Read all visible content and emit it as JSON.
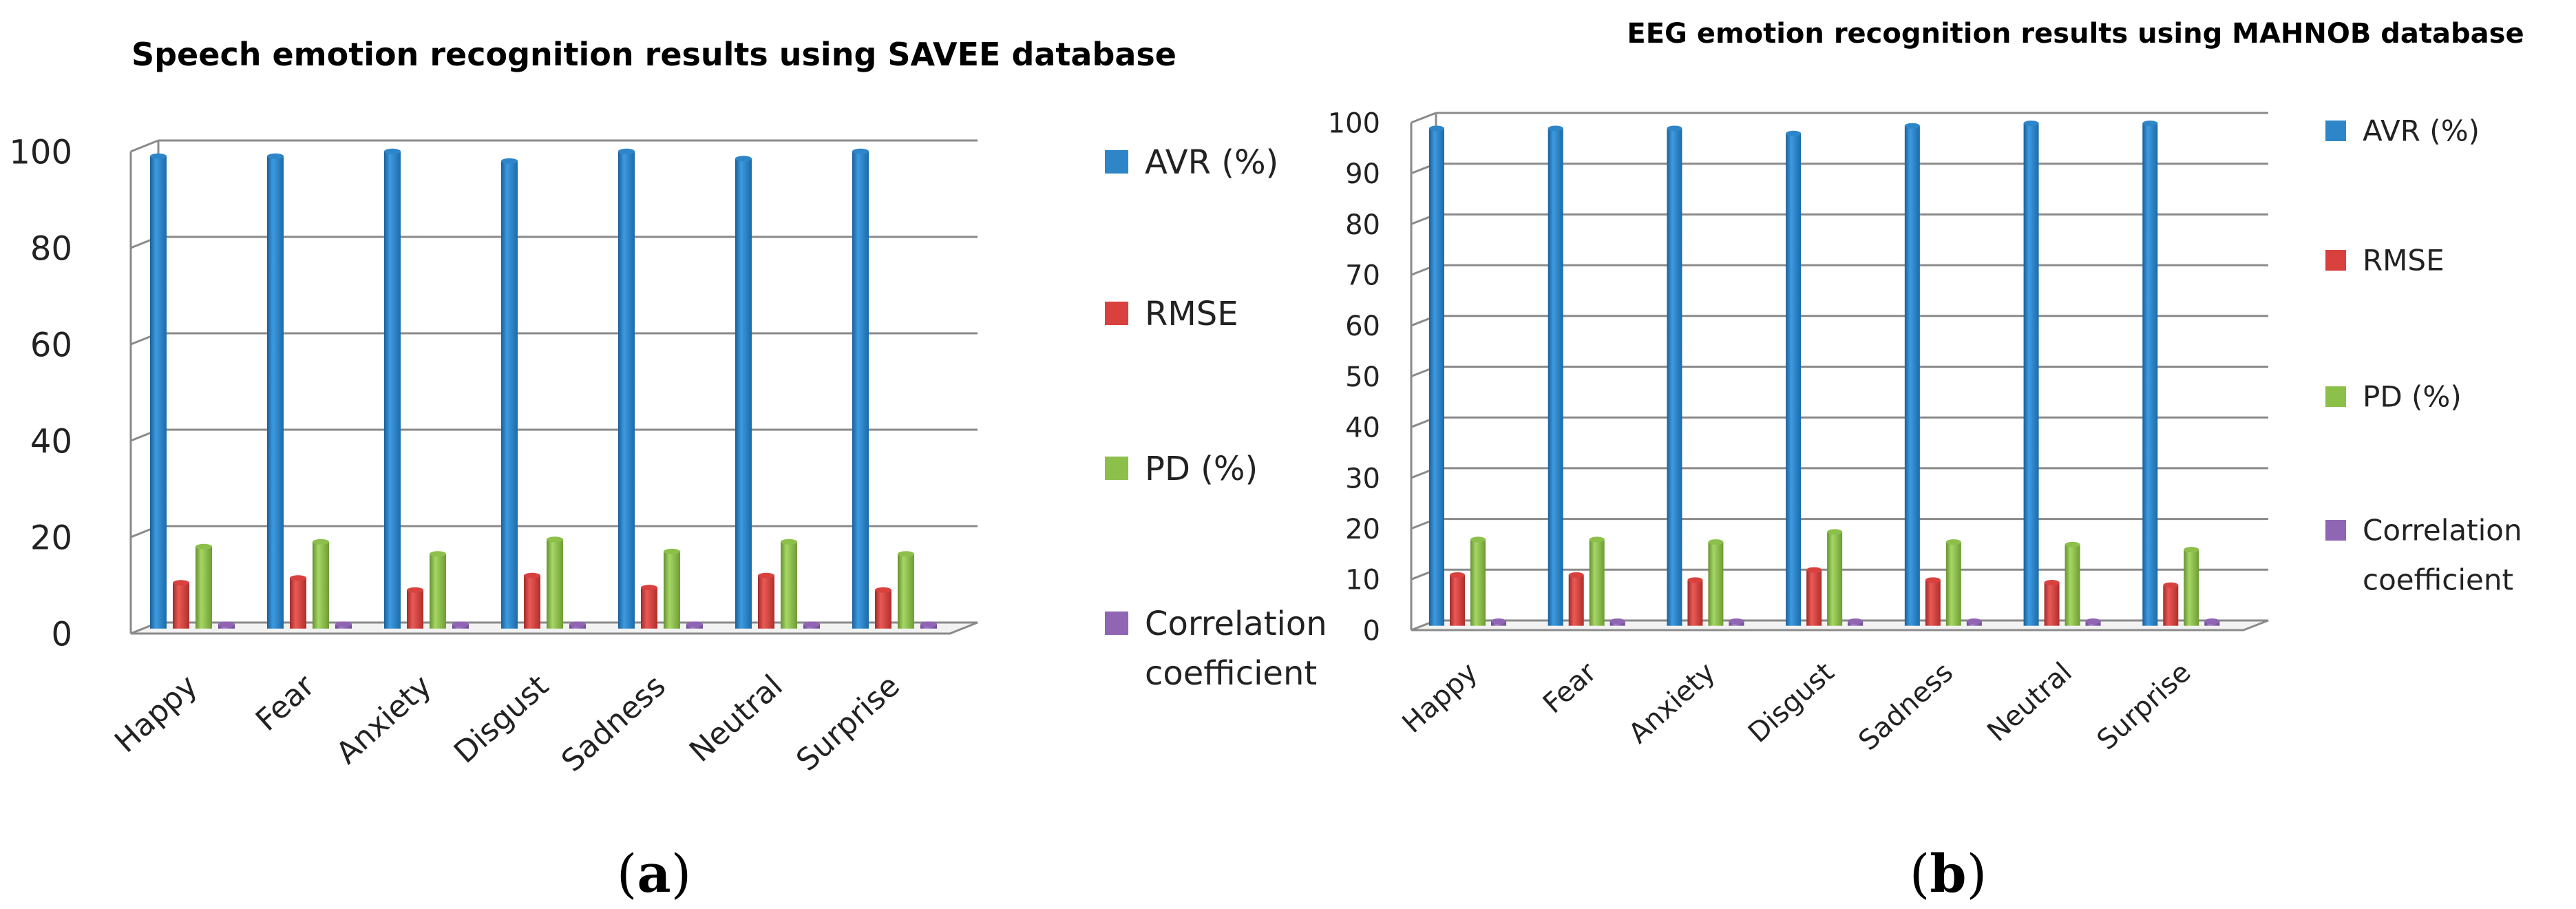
{
  "colors": {
    "AVR (%)": "#2e86c9",
    "RMSE": "#d9413e",
    "PD (%)": "#8cc04a",
    "Correlation coefficient": "#8f65b4"
  },
  "chart_data": [
    {
      "type": "bar",
      "panel": "a",
      "title": "Speech emotion recognition results using SAVEE database",
      "categories": [
        "Happy",
        "Fear",
        "Anxiety",
        "Disgust",
        "Sadness",
        "Neutral",
        "Surprise"
      ],
      "series": [
        {
          "name": "AVR (%)",
          "values": [
            98,
            98,
            99,
            97,
            99,
            97.5,
            99
          ]
        },
        {
          "name": "RMSE",
          "values": [
            9.5,
            10.5,
            8,
            11,
            8.5,
            11,
            8
          ]
        },
        {
          "name": "PD (%)",
          "values": [
            17,
            18,
            15.5,
            18.5,
            16,
            18,
            15.5
          ]
        },
        {
          "name": "Correlation coefficient",
          "values": [
            0.9,
            0.9,
            0.9,
            0.9,
            0.9,
            0.9,
            0.9
          ]
        }
      ],
      "yticks": [
        "0",
        "20",
        "40",
        "60",
        "80",
        "100"
      ],
      "ylim": [
        0,
        100
      ],
      "legend": [
        "AVR (%)",
        "RMSE",
        "PD (%)",
        "Correlation",
        "coefficient"
      ],
      "xlabel": "",
      "ylabel": "",
      "grid": true,
      "legend_position": "right"
    },
    {
      "type": "bar",
      "panel": "b",
      "title": "EEG emotion recognition results using MAHNOB database",
      "categories": [
        "Happy",
        "Fear",
        "Anxiety",
        "Disgust",
        "Sadness",
        "Neutral",
        "Surprise"
      ],
      "series": [
        {
          "name": "AVR (%)",
          "values": [
            98,
            98,
            98,
            97,
            98.5,
            99,
            99
          ]
        },
        {
          "name": "RMSE",
          "values": [
            10,
            10,
            9,
            11,
            9,
            8.5,
            8
          ]
        },
        {
          "name": "PD (%)",
          "values": [
            17,
            17,
            16.5,
            18.5,
            16.5,
            16,
            15
          ]
        },
        {
          "name": "Correlation coefficient",
          "values": [
            0.9,
            0.9,
            0.9,
            0.9,
            0.9,
            0.9,
            0.9
          ]
        }
      ],
      "yticks": [
        "0",
        "10",
        "20",
        "30",
        "40",
        "50",
        "60",
        "70",
        "80",
        "90",
        "100"
      ],
      "ylim": [
        0,
        100
      ],
      "legend": [
        "AVR (%)",
        "RMSE",
        "PD (%)",
        "Correlation",
        "coefficient"
      ],
      "xlabel": "",
      "ylabel": "",
      "grid": true,
      "legend_position": "right"
    }
  ],
  "panel_labels": {
    "a": {
      "open": "(",
      "letter": "a",
      "close": ")"
    },
    "b": {
      "open": "(",
      "letter": "b",
      "close": ")"
    }
  }
}
